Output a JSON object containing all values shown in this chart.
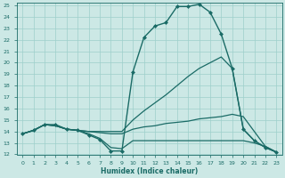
{
  "xlabel": "Humidex (Indice chaleur)",
  "bg_color": "#cce8e5",
  "grid_color": "#9ecfcb",
  "line_color": "#1a6b66",
  "xlim": [
    -0.5,
    23.5
  ],
  "ylim": [
    12,
    25.2
  ],
  "xticks": [
    0,
    1,
    2,
    3,
    4,
    5,
    6,
    7,
    8,
    9,
    10,
    11,
    12,
    13,
    14,
    15,
    16,
    17,
    18,
    19,
    20,
    21,
    22,
    23
  ],
  "yticks": [
    12,
    13,
    14,
    15,
    16,
    17,
    18,
    19,
    20,
    21,
    22,
    23,
    24,
    25
  ],
  "series": [
    {
      "x": [
        0,
        1,
        2,
        3,
        4,
        5,
        6,
        7,
        8,
        9,
        10,
        11,
        12,
        13,
        14,
        15,
        16,
        17,
        18,
        19,
        20,
        21,
        22,
        23
      ],
      "y": [
        13.8,
        14.1,
        14.6,
        14.6,
        14.2,
        14.1,
        13.7,
        13.3,
        12.3,
        12.3,
        19.2,
        22.2,
        23.2,
        23.5,
        24.9,
        24.9,
        25.1,
        24.4,
        22.5,
        19.5,
        14.2,
        13.2,
        12.6,
        12.2
      ],
      "marker": "D",
      "markersize": 2.0,
      "linewidth": 1.0
    },
    {
      "x": [
        0,
        1,
        2,
        3,
        4,
        5,
        6,
        7,
        8,
        9,
        10,
        11,
        12,
        13,
        14,
        15,
        16,
        17,
        18,
        19,
        20,
        21,
        22,
        23
      ],
      "y": [
        13.8,
        14.1,
        14.6,
        14.5,
        14.2,
        14.1,
        14.0,
        13.9,
        13.8,
        13.8,
        14.2,
        14.4,
        14.5,
        14.7,
        14.8,
        14.9,
        15.1,
        15.2,
        15.3,
        15.5,
        15.3,
        14.0,
        12.7,
        12.2
      ],
      "marker": null,
      "linewidth": 0.9
    },
    {
      "x": [
        0,
        1,
        2,
        3,
        4,
        5,
        6,
        7,
        8,
        9,
        10,
        11,
        12,
        13,
        14,
        15,
        16,
        17,
        18,
        19,
        20,
        21,
        22,
        23
      ],
      "y": [
        13.8,
        14.1,
        14.6,
        14.5,
        14.2,
        14.1,
        14.0,
        14.0,
        14.0,
        14.0,
        15.0,
        15.8,
        16.5,
        17.2,
        18.0,
        18.8,
        19.5,
        20.0,
        20.5,
        19.5,
        14.2,
        13.2,
        12.6,
        12.2
      ],
      "marker": null,
      "linewidth": 0.9
    },
    {
      "x": [
        0,
        1,
        2,
        3,
        4,
        5,
        6,
        7,
        8,
        9,
        10,
        11,
        12,
        13,
        14,
        15,
        16,
        17,
        18,
        19,
        20,
        21,
        22,
        23
      ],
      "y": [
        13.8,
        14.1,
        14.6,
        14.5,
        14.2,
        14.1,
        13.8,
        13.4,
        12.6,
        12.5,
        13.2,
        13.2,
        13.2,
        13.2,
        13.2,
        13.2,
        13.2,
        13.2,
        13.2,
        13.2,
        13.2,
        13.0,
        12.7,
        12.2
      ],
      "marker": null,
      "linewidth": 0.9
    }
  ]
}
